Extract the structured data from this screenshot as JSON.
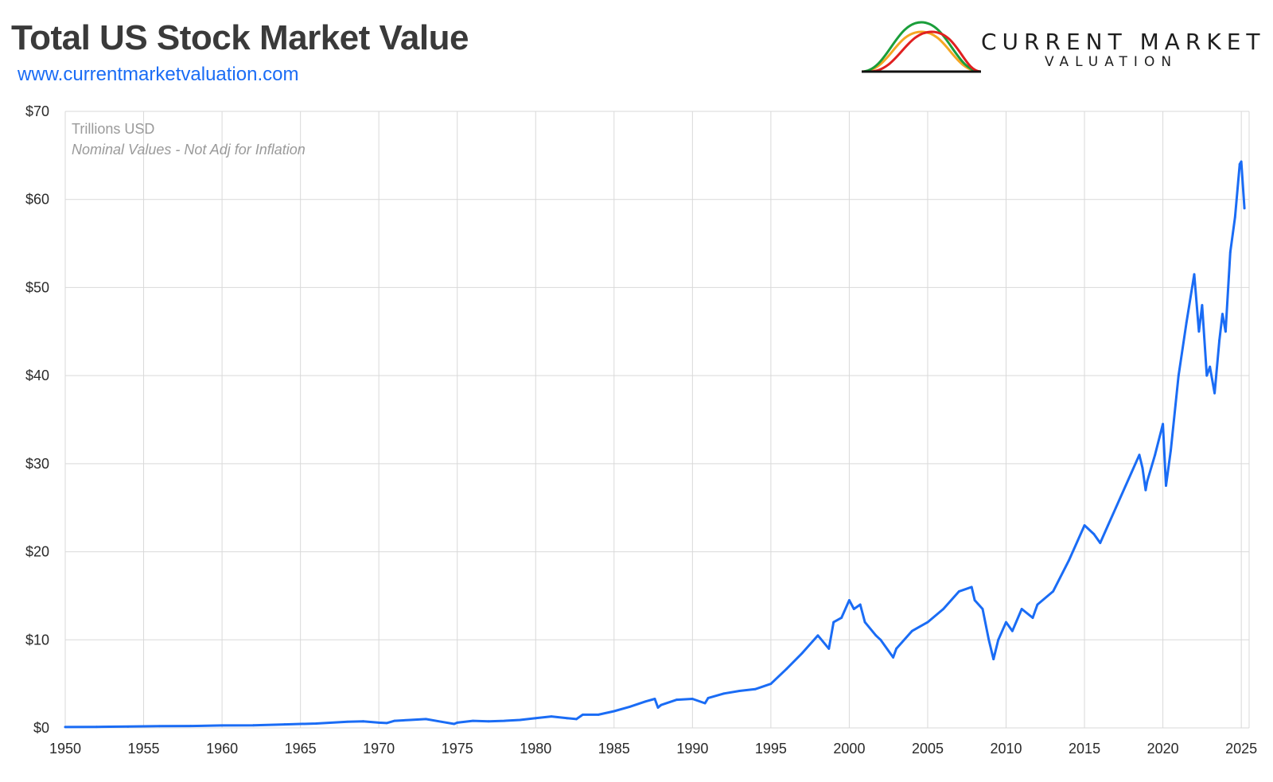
{
  "header": {
    "title": "Total US Stock Market Value",
    "website": "www.currentmarketvaluation.com"
  },
  "logo": {
    "line1": "CURRENT MARKET",
    "line2": "VALUATION",
    "curve_colors": [
      "#f5a623",
      "#1a9e3a",
      "#e02020"
    ]
  },
  "colors": {
    "series": "#1a6cf5",
    "grid": "#d9d9d9",
    "axis_text": "#2a2a2a",
    "note_text": "#9a9a9a"
  },
  "chart_data": {
    "type": "line",
    "title": "Total US Stock Market Value",
    "xlabel": "",
    "ylabel": "",
    "unit_note": "Trillions USD",
    "inflation_note": "Nominal Values - Not Adj for Inflation",
    "xlim": [
      1950,
      2025.5
    ],
    "ylim": [
      0,
      70
    ],
    "x_ticks": [
      1950,
      1955,
      1960,
      1965,
      1970,
      1975,
      1980,
      1985,
      1990,
      1995,
      2000,
      2005,
      2010,
      2015,
      2020,
      2025
    ],
    "x_tick_labels": [
      "1950",
      "1955",
      "1960",
      "1965",
      "1970",
      "1975",
      "1980",
      "1985",
      "1990",
      "1995",
      "2000",
      "2005",
      "2010",
      "2015",
      "2020",
      "2025"
    ],
    "y_ticks": [
      0,
      10,
      20,
      30,
      40,
      50,
      60,
      70
    ],
    "y_tick_labels": [
      "$0",
      "$10",
      "$20",
      "$30",
      "$40",
      "$50",
      "$60",
      "$70"
    ],
    "grid": true,
    "series": [
      {
        "name": "Total US Stock Market Value",
        "x": [
          1950,
          1952,
          1954,
          1956,
          1958,
          1960,
          1962,
          1964,
          1966,
          1968,
          1969,
          1970,
          1970.5,
          1971,
          1972,
          1973,
          1974,
          1974.8,
          1975,
          1976,
          1977,
          1978,
          1979,
          1980,
          1981,
          1982,
          1982.6,
          1983,
          1984,
          1985,
          1986,
          1987,
          1987.6,
          1987.8,
          1988,
          1989,
          1990,
          1990.8,
          1991,
          1992,
          1993,
          1994,
          1995,
          1996,
          1997,
          1998,
          1998.7,
          1999,
          1999.5,
          2000,
          2000.3,
          2000.7,
          2001,
          2001.7,
          2002,
          2002.8,
          2003,
          2004,
          2005,
          2006,
          2007,
          2007.8,
          2008,
          2008.5,
          2008.9,
          2009.2,
          2009.5,
          2010,
          2010.4,
          2011,
          2011.7,
          2012,
          2013,
          2014,
          2015,
          2015.6,
          2016,
          2016.5,
          2017,
          2018,
          2018.5,
          2018.7,
          2018.9,
          2019,
          2019.5,
          2020,
          2020.2,
          2020.5,
          2021,
          2021.5,
          2022,
          2022.3,
          2022.5,
          2022.8,
          2023,
          2023.3,
          2023.6,
          2023.8,
          2024,
          2024.3,
          2024.6,
          2024.9,
          2025,
          2025.2
        ],
        "values": [
          0.1,
          0.12,
          0.15,
          0.2,
          0.22,
          0.28,
          0.3,
          0.4,
          0.5,
          0.7,
          0.75,
          0.6,
          0.55,
          0.8,
          0.9,
          1.0,
          0.7,
          0.45,
          0.6,
          0.8,
          0.75,
          0.8,
          0.9,
          1.1,
          1.3,
          1.1,
          1.0,
          1.5,
          1.5,
          1.9,
          2.4,
          3.0,
          3.3,
          2.3,
          2.6,
          3.2,
          3.3,
          2.8,
          3.4,
          3.9,
          4.2,
          4.4,
          5.0,
          6.7,
          8.5,
          10.5,
          9.0,
          12.0,
          12.5,
          14.5,
          13.5,
          14.0,
          12.0,
          10.5,
          10.0,
          8.0,
          9.0,
          11.0,
          12.0,
          13.5,
          15.5,
          16.0,
          14.5,
          13.5,
          10.0,
          7.8,
          10.0,
          12.0,
          11.0,
          13.5,
          12.5,
          14.0,
          15.5,
          19.0,
          23.0,
          22.0,
          21.0,
          23.0,
          25.0,
          29.0,
          31.0,
          29.5,
          27.0,
          28.0,
          31.0,
          34.5,
          27.5,
          31.5,
          40.0,
          46.0,
          51.5,
          45.0,
          48.0,
          40.0,
          41.0,
          38.0,
          44.0,
          47.0,
          45.0,
          54.0,
          58.0,
          64.0,
          64.3,
          59.0
        ]
      }
    ]
  }
}
